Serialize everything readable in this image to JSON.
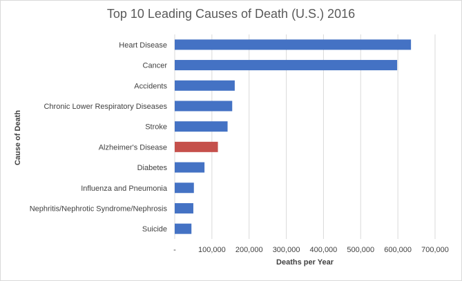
{
  "chart_data": {
    "type": "bar",
    "orientation": "horizontal",
    "title": "Top 10 Leading Causes of Death (U.S.) 2016",
    "xlabel": "Deaths per Year",
    "ylabel": "Cause of Death",
    "categories": [
      "Heart Disease",
      "Cancer",
      "Accidents",
      "Chronic Lower Respiratory Diseases",
      "Stroke",
      "Alzheimer's Disease",
      "Diabetes",
      "Influenza and Pneumonia",
      "Nephritis/Nephrotic Syndrome/Nephrosis",
      "Suicide"
    ],
    "values": [
      635260,
      598038,
      161374,
      154596,
      142142,
      116103,
      80058,
      51537,
      50046,
      44965
    ],
    "highlight_index": 5,
    "colors": {
      "bar": "#4472C4",
      "highlight": "#C5504B",
      "grid": "#D9D9D9"
    },
    "xlim": [
      0,
      700000
    ],
    "xticks": [
      "-",
      "100,000",
      "200,000",
      "300,000",
      "400,000",
      "500,000",
      "600,000",
      "700,000"
    ],
    "grid": true,
    "legend": "none"
  }
}
